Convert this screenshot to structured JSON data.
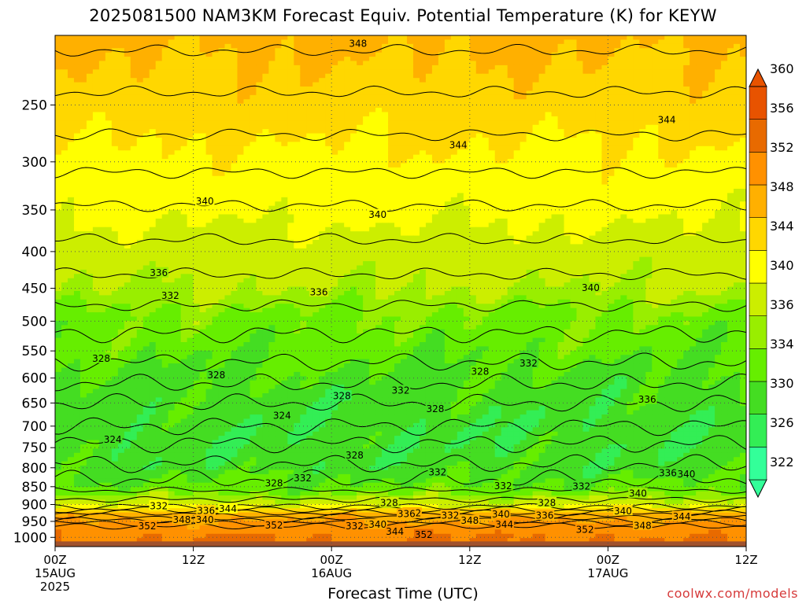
{
  "title": "2025081500 NAM3KM Forecast Equiv. Potential Temperature (K) for KEYW",
  "credit": "coolwx.com/models",
  "chart_data": {
    "type": "heatmap",
    "title": "2025081500 NAM3KM Forecast Equiv. Potential Temperature (K) for KEYW",
    "xlabel": "Forecast Time (UTC)",
    "ylabel": "",
    "x_range_hours": [
      0,
      60
    ],
    "x_ticks": [
      {
        "hour": 0,
        "lines": [
          "00Z",
          "15AUG",
          "2025"
        ]
      },
      {
        "hour": 12,
        "lines": [
          "12Z"
        ]
      },
      {
        "hour": 24,
        "lines": [
          "00Z",
          "16AUG"
        ]
      },
      {
        "hour": 36,
        "lines": [
          "12Z"
        ]
      },
      {
        "hour": 48,
        "lines": [
          "00Z",
          "17AUG"
        ]
      },
      {
        "hour": 60,
        "lines": [
          "12Z"
        ]
      }
    ],
    "y_axis": {
      "unit": "hPa",
      "log_scale": true,
      "range": [
        1030,
        200
      ],
      "inverted": true
    },
    "y_ticks": [
      250,
      300,
      350,
      400,
      450,
      500,
      550,
      600,
      650,
      700,
      750,
      800,
      850,
      900,
      950,
      1000
    ],
    "grid": true,
    "legend_placement": "right",
    "colorbar": {
      "levels": [
        322,
        326,
        330,
        334,
        336,
        340,
        344,
        348,
        352,
        356,
        360
      ],
      "colors": [
        "#33ff99",
        "#33ee55",
        "#44dd22",
        "#66ee00",
        "#99ee00",
        "#ccee00",
        "#ffff00",
        "#ffd700",
        "#ffb000",
        "#ff9100",
        "#e86a00",
        "#e85300"
      ]
    },
    "vertical_profile_by_pressure": [
      {
        "p": 200,
        "theta_e": 349
      },
      {
        "p": 250,
        "theta_e": 346
      },
      {
        "p": 300,
        "theta_e": 343
      },
      {
        "p": 350,
        "theta_e": 341
      },
      {
        "p": 400,
        "theta_e": 338
      },
      {
        "p": 450,
        "theta_e": 336
      },
      {
        "p": 500,
        "theta_e": 333
      },
      {
        "p": 550,
        "theta_e": 331
      },
      {
        "p": 600,
        "theta_e": 329
      },
      {
        "p": 650,
        "theta_e": 328
      },
      {
        "p": 700,
        "theta_e": 327
      },
      {
        "p": 750,
        "theta_e": 327
      },
      {
        "p": 800,
        "theta_e": 328
      },
      {
        "p": 850,
        "theta_e": 331
      },
      {
        "p": 900,
        "theta_e": 338
      },
      {
        "p": 925,
        "theta_e": 350
      },
      {
        "p": 950,
        "theta_e": 352
      },
      {
        "p": 1000,
        "theta_e": 356
      },
      {
        "p": 1013,
        "theta_e": null
      }
    ],
    "contour_labels": [
      {
        "text": "348",
        "hour": 26.3,
        "p": 205
      },
      {
        "text": "344",
        "hour": 53.1,
        "p": 262
      },
      {
        "text": "344",
        "hour": 35.0,
        "p": 284
      },
      {
        "text": "340",
        "hour": 13.0,
        "p": 340
      },
      {
        "text": "340",
        "hour": 28.0,
        "p": 355
      },
      {
        "text": "336",
        "hour": 9.0,
        "p": 428
      },
      {
        "text": "336",
        "hour": 22.9,
        "p": 455
      },
      {
        "text": "332",
        "hour": 10.0,
        "p": 460
      },
      {
        "text": "340",
        "hour": 46.5,
        "p": 449
      },
      {
        "text": "328",
        "hour": 4.0,
        "p": 563
      },
      {
        "text": "328",
        "hour": 14.0,
        "p": 594
      },
      {
        "text": "328",
        "hour": 36.9,
        "p": 587
      },
      {
        "text": "332",
        "hour": 41.1,
        "p": 572
      },
      {
        "text": "332",
        "hour": 30.0,
        "p": 624
      },
      {
        "text": "328",
        "hour": 24.9,
        "p": 635
      },
      {
        "text": "328",
        "hour": 33.0,
        "p": 662
      },
      {
        "text": "324",
        "hour": 19.7,
        "p": 676
      },
      {
        "text": "336",
        "hour": 51.4,
        "p": 642
      },
      {
        "text": "324",
        "hour": 5.0,
        "p": 730
      },
      {
        "text": "328",
        "hour": 26.0,
        "p": 768
      },
      {
        "text": "332",
        "hour": 33.2,
        "p": 811
      },
      {
        "text": "332",
        "hour": 21.5,
        "p": 826
      },
      {
        "text": "328",
        "hour": 19.0,
        "p": 840
      },
      {
        "text": "336",
        "hour": 53.2,
        "p": 813
      },
      {
        "text": "340",
        "hour": 54.8,
        "p": 816
      },
      {
        "text": "332",
        "hour": 38.9,
        "p": 847
      },
      {
        "text": "332",
        "hour": 45.7,
        "p": 848
      },
      {
        "text": "328",
        "hour": 29.0,
        "p": 894
      },
      {
        "text": "328",
        "hour": 42.7,
        "p": 894
      },
      {
        "text": "340",
        "hour": 50.6,
        "p": 868
      },
      {
        "text": "332",
        "hour": 9.0,
        "p": 903
      },
      {
        "text": "344",
        "hour": 15.0,
        "p": 912
      },
      {
        "text": "336",
        "hour": 13.1,
        "p": 917
      },
      {
        "text": "332",
        "hour": 31.0,
        "p": 924
      },
      {
        "text": "336",
        "hour": 30.5,
        "p": 927
      },
      {
        "text": "340",
        "hour": 38.7,
        "p": 928
      },
      {
        "text": "332",
        "hour": 34.3,
        "p": 931
      },
      {
        "text": "336",
        "hour": 42.5,
        "p": 931
      },
      {
        "text": "340",
        "hour": 49.3,
        "p": 918
      },
      {
        "text": "344",
        "hour": 54.4,
        "p": 935
      },
      {
        "text": "348",
        "hour": 11.0,
        "p": 944
      },
      {
        "text": "340",
        "hour": 13.0,
        "p": 944
      },
      {
        "text": "352",
        "hour": 8.0,
        "p": 964
      },
      {
        "text": "352",
        "hour": 19.0,
        "p": 961
      },
      {
        "text": "332",
        "hour": 26.0,
        "p": 963
      },
      {
        "text": "340",
        "hour": 28.0,
        "p": 959
      },
      {
        "text": "348",
        "hour": 36.0,
        "p": 947
      },
      {
        "text": "344",
        "hour": 39.0,
        "p": 958
      },
      {
        "text": "344",
        "hour": 29.5,
        "p": 981
      },
      {
        "text": "352",
        "hour": 32.0,
        "p": 991
      },
      {
        "text": "352",
        "hour": 46.0,
        "p": 974
      },
      {
        "text": "348",
        "hour": 51.0,
        "p": 962
      }
    ]
  }
}
